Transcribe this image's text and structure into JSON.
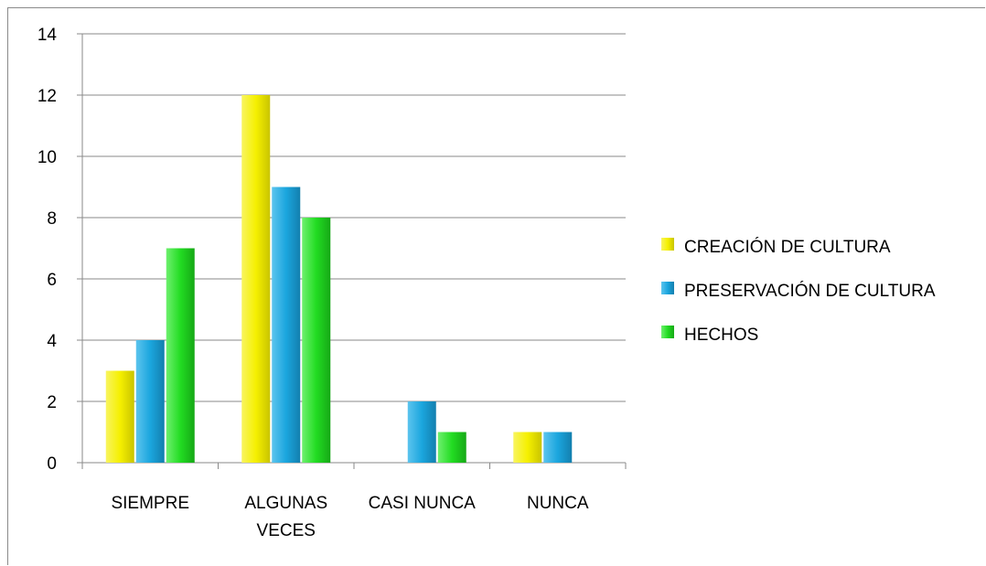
{
  "chart_data": {
    "type": "bar",
    "categories": [
      [
        "SIEMPRE"
      ],
      [
        "ALGUNAS",
        "VECES"
      ],
      [
        "CASI NUNCA"
      ],
      [
        "NUNCA"
      ]
    ],
    "series": [
      {
        "name": "CREACIÓN DE CULTURA",
        "values": [
          3,
          12,
          0,
          1
        ],
        "color": "#f5f000"
      },
      {
        "name": "PRESERVACIÓN DE CULTURA",
        "values": [
          4,
          9,
          2,
          1
        ],
        "color": "#1ba6de"
      },
      {
        "name": "HECHOS",
        "values": [
          7,
          8,
          1,
          0
        ],
        "color": "#22dc22"
      }
    ],
    "ylim": [
      0,
      14
    ],
    "yticks": [
      0,
      2,
      4,
      6,
      8,
      10,
      12,
      14
    ],
    "grid": true,
    "legend_position": "right"
  }
}
